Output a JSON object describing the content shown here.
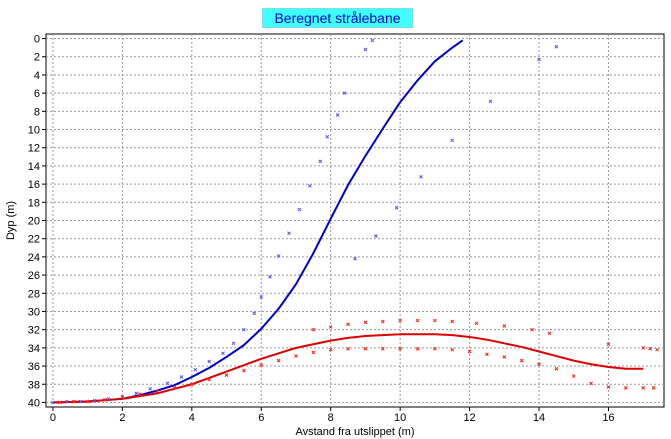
{
  "chart_data": {
    "type": "line",
    "title": "Beregnet strålebane",
    "xlabel": "Avstand fra utslippet (m)",
    "ylabel": "Dyp (m)",
    "xlim": [
      -0.2,
      17.6
    ],
    "ylim": [
      40.5,
      -0.5
    ],
    "y_inverted": true,
    "grid": true,
    "x_ticks": [
      0,
      2,
      4,
      6,
      8,
      10,
      12,
      14,
      16
    ],
    "y_ticks": [
      0,
      2,
      4,
      6,
      8,
      10,
      12,
      14,
      16,
      18,
      20,
      22,
      24,
      26,
      28,
      30,
      32,
      34,
      36,
      38,
      40
    ],
    "colors": {
      "blue": "#0000cc",
      "red": "#dd0000",
      "blue_points": "#5555ee",
      "red_points": "#ee2222"
    },
    "series": [
      {
        "color": "blue",
        "style": "line",
        "x": [
          0,
          1,
          2,
          2.5,
          3,
          3.5,
          4,
          4.5,
          5,
          5.5,
          6,
          6.5,
          7,
          7.5,
          8,
          8.5,
          9,
          9.5,
          10,
          10.5,
          11,
          11.5,
          11.8
        ],
        "y": [
          40,
          39.9,
          39.6,
          39.2,
          38.7,
          38.1,
          37.2,
          36.2,
          35.0,
          33.7,
          31.9,
          29.7,
          27.0,
          23.6,
          19.8,
          16.1,
          12.9,
          9.9,
          7.0,
          4.6,
          2.5,
          1.0,
          0.2
        ]
      },
      {
        "color": "red",
        "style": "line",
        "x": [
          0,
          1,
          2,
          3,
          3.5,
          4,
          4.5,
          5,
          5.5,
          6,
          6.5,
          7,
          7.5,
          8,
          8.5,
          9,
          9.5,
          10,
          10.5,
          11,
          11.5,
          12,
          12.5,
          13,
          13.5,
          14,
          14.5,
          15,
          15.5,
          16,
          16.5,
          17
        ],
        "y": [
          40,
          39.9,
          39.6,
          39.0,
          38.5,
          38.0,
          37.3,
          36.6,
          35.9,
          35.2,
          34.6,
          34.0,
          33.6,
          33.2,
          32.9,
          32.7,
          32.6,
          32.5,
          32.5,
          32.5,
          32.6,
          32.8,
          33.1,
          33.5,
          33.9,
          34.4,
          34.9,
          35.4,
          35.8,
          36.1,
          36.3,
          36.3
        ]
      },
      {
        "color": "blue_points",
        "style": "markers",
        "x": [
          0,
          0.4,
          0.8,
          1.2,
          1.6,
          2.0,
          2.4,
          2.8,
          3.3,
          3.7,
          4.1,
          4.5,
          4.9,
          5.2,
          5.5,
          5.8,
          6.0,
          6.25,
          6.5,
          6.8,
          7.1,
          7.4,
          7.7,
          7.9,
          8.2,
          8.4,
          8.7,
          9.0,
          9.2,
          9.3,
          9.9,
          10.6,
          11.5,
          12.6,
          14.0,
          14.5
        ],
        "y": [
          40,
          39.9,
          39.9,
          39.8,
          39.6,
          39.4,
          39.0,
          38.5,
          37.9,
          37.2,
          36.4,
          35.5,
          34.6,
          33.5,
          32.0,
          30.2,
          28.4,
          26.2,
          23.9,
          21.4,
          18.8,
          16.2,
          13.5,
          10.8,
          8.4,
          6.0,
          24.2,
          1.2,
          0.2,
          21.7,
          18.6,
          15.2,
          11.2,
          6.9,
          2.3,
          0.9
        ]
      },
      {
        "color": "red_points",
        "style": "markers",
        "x": [
          0.2,
          0.6,
          1.0,
          1.5,
          2.0,
          2.5,
          3.0,
          3.5,
          4.0,
          4.5,
          5.0,
          5.5,
          6.0,
          6.5,
          7.0,
          7.5,
          8.0,
          8.5,
          9.0,
          9.5,
          10.0,
          10.5,
          11.0,
          11.5,
          12.0,
          12.5,
          13.0,
          13.5,
          14.0,
          14.5,
          15.0,
          15.5,
          16.0,
          16.5,
          17.0,
          17.3,
          7.5,
          8.0,
          8.5,
          9.0,
          9.5,
          10.0,
          10.5,
          11.0,
          11.5,
          12.2,
          13.0,
          13.8,
          14.3,
          16.0,
          17.0,
          17.2,
          17.4
        ],
        "y": [
          40,
          39.9,
          39.9,
          39.7,
          39.4,
          39.1,
          38.8,
          38.4,
          38.0,
          37.5,
          37.0,
          36.5,
          35.9,
          35.4,
          34.9,
          34.5,
          34.2,
          34.1,
          34.1,
          34.1,
          34.1,
          34.1,
          34.1,
          34.2,
          34.4,
          34.7,
          35.0,
          35.4,
          35.8,
          36.3,
          37.1,
          37.9,
          38.3,
          38.4,
          38.4,
          38.4,
          32.0,
          31.7,
          31.4,
          31.2,
          31.1,
          31.0,
          31.0,
          31.0,
          31.1,
          31.3,
          31.6,
          32.0,
          32.4,
          33.6,
          34.0,
          34.1,
          34.2
        ]
      }
    ]
  }
}
